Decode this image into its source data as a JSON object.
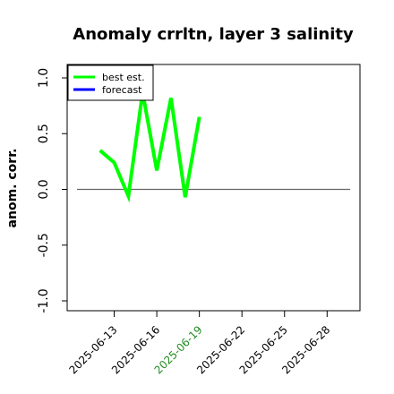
{
  "chart_data": {
    "type": "line",
    "title": "Anomaly crrltn, layer 3 salinity",
    "xlabel": "",
    "ylabel": "anom. corr.",
    "ylim": [
      -1.0,
      1.0
    ],
    "yticks": [
      -1.0,
      -0.5,
      0.0,
      0.5,
      1.0
    ],
    "yticklabels": [
      "-1.0",
      "-0.5",
      "0.0",
      "0.5",
      "1.0"
    ],
    "xlim": [
      "2025-06-10",
      "2025-06-30"
    ],
    "xticks": [
      "2025-06-13",
      "2025-06-16",
      "2025-06-19",
      "2025-06-22",
      "2025-06-25",
      "2025-06-28"
    ],
    "highlighted_xtick": "2025-06-19",
    "highlight_color": "#228b22",
    "zero_line": 0.0,
    "grid": false,
    "legend_position": "top-left",
    "series": [
      {
        "name": "best est.",
        "color": "#00ff00",
        "x": [
          "2025-06-12",
          "2025-06-13",
          "2025-06-14",
          "2025-06-15",
          "2025-06-16",
          "2025-06-17",
          "2025-06-18",
          "2025-06-19"
        ],
        "values": [
          0.35,
          0.24,
          -0.06,
          0.87,
          0.17,
          0.82,
          -0.07,
          0.65
        ]
      },
      {
        "name": "forecast",
        "color": "#0000ff",
        "x": [],
        "values": []
      }
    ]
  }
}
